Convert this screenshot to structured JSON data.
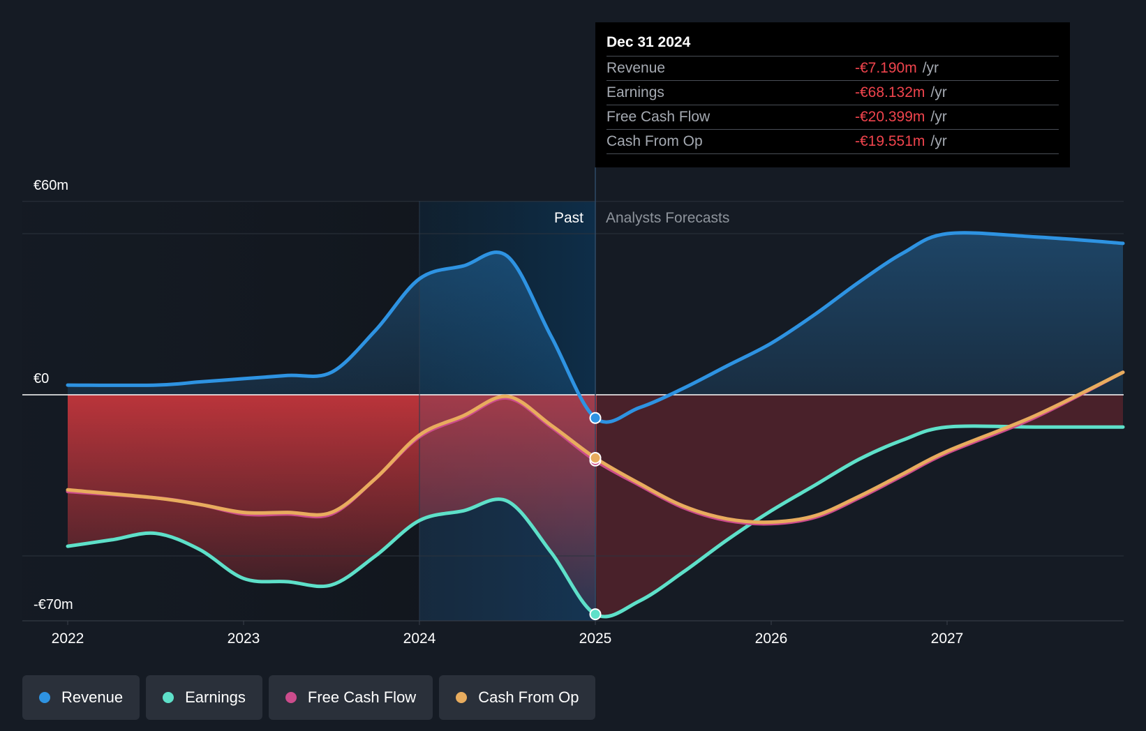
{
  "chart_data": {
    "type": "line",
    "currency": "€",
    "unit": "m",
    "y_ticks": [
      {
        "value": 60,
        "label": "€60m"
      },
      {
        "value": 0,
        "label": "€0"
      },
      {
        "value": -70,
        "label": "-€70m"
      }
    ],
    "ylim": [
      -70,
      60
    ],
    "xlim": [
      2021.75,
      2028.0
    ],
    "x_ticks": [
      "2022",
      "2023",
      "2024",
      "2025",
      "2026",
      "2027"
    ],
    "x_tick_values": [
      2022,
      2023,
      2024,
      2025,
      2026,
      2027
    ],
    "past_label": "Past",
    "forecast_label": "Analysts Forecasts",
    "divider_x": 2025.0,
    "highlight_range": [
      2024.0,
      2025.0
    ],
    "series": [
      {
        "name": "Revenue",
        "color": "#2e93e2",
        "x": [
          2022.0,
          2022.5,
          2022.75,
          2023.0,
          2023.25,
          2023.5,
          2023.75,
          2024.0,
          2024.25,
          2024.5,
          2024.75,
          2025.0,
          2025.25,
          2025.5,
          2025.75,
          2026.0,
          2026.25,
          2026.5,
          2026.75,
          2027.0,
          2027.5,
          2028.0
        ],
        "values": [
          3,
          3,
          4,
          5,
          6,
          7,
          20,
          36,
          40,
          43,
          18,
          -7.2,
          -4,
          2,
          9,
          16,
          25,
          35,
          44,
          50,
          49,
          47
        ]
      },
      {
        "name": "Earnings",
        "color": "#5ee0c9",
        "x": [
          2022.0,
          2022.25,
          2022.5,
          2022.75,
          2023.0,
          2023.25,
          2023.5,
          2023.75,
          2024.0,
          2024.25,
          2024.5,
          2024.75,
          2025.0,
          2025.25,
          2025.5,
          2025.75,
          2026.0,
          2026.25,
          2026.5,
          2026.75,
          2027.0,
          2027.5,
          2028.0
        ],
        "values": [
          -47,
          -45,
          -43,
          -48,
          -57,
          -58,
          -59,
          -50,
          -39,
          -36,
          -33,
          -49,
          -68.1,
          -64,
          -55,
          -45,
          -36,
          -28,
          -20,
          -14,
          -10,
          -10,
          -10
        ]
      },
      {
        "name": "Free Cash Flow",
        "color": "#cc4c8c",
        "x": [
          2022.0,
          2022.5,
          2022.75,
          2023.0,
          2023.25,
          2023.5,
          2023.75,
          2024.0,
          2024.25,
          2024.5,
          2024.75,
          2025.0,
          2025.25,
          2025.5,
          2025.75,
          2026.0,
          2026.25,
          2026.5,
          2026.75,
          2027.0,
          2027.5,
          2028.0
        ],
        "values": [
          -30,
          -32,
          -34,
          -37,
          -37,
          -37,
          -26,
          -13,
          -7,
          -1,
          -10,
          -20.4,
          -28,
          -35,
          -39,
          -40,
          -38,
          -32,
          -25,
          -18,
          -7,
          7
        ]
      },
      {
        "name": "Cash From Op",
        "color": "#e8ac5e",
        "x": [
          2022.0,
          2022.5,
          2022.75,
          2023.0,
          2023.25,
          2023.5,
          2023.75,
          2024.0,
          2024.25,
          2024.5,
          2024.75,
          2025.0,
          2025.25,
          2025.5,
          2025.75,
          2026.0,
          2026.25,
          2026.5,
          2026.75,
          2027.0,
          2027.5,
          2028.0
        ],
        "values": [
          -29.5,
          -32,
          -34,
          -36.5,
          -36.5,
          -36.5,
          -26,
          -12.5,
          -6.5,
          -0.5,
          -9.5,
          -19.6,
          -27.5,
          -34.5,
          -38.5,
          -39.5,
          -37.5,
          -31.5,
          -24.5,
          -17.5,
          -6.5,
          7
        ]
      }
    ],
    "tooltip": {
      "date": "Dec 31 2024",
      "rows": [
        {
          "label": "Revenue",
          "value": "-€7.190m",
          "unit": "/yr"
        },
        {
          "label": "Earnings",
          "value": "-€68.132m",
          "unit": "/yr"
        },
        {
          "label": "Free Cash Flow",
          "value": "-€20.399m",
          "unit": "/yr"
        },
        {
          "label": "Cash From Op",
          "value": "-€19.551m",
          "unit": "/yr"
        }
      ]
    }
  },
  "legend": [
    {
      "label": "Revenue",
      "color": "#2e93e2"
    },
    {
      "label": "Earnings",
      "color": "#5ee0c9"
    },
    {
      "label": "Free Cash Flow",
      "color": "#cc4c8c"
    },
    {
      "label": "Cash From Op",
      "color": "#e8ac5e"
    }
  ]
}
